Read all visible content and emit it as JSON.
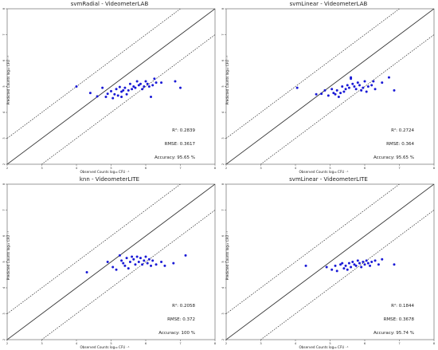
{
  "chart_data": [
    {
      "type": "scatter",
      "title": "svmRadial - VideometerLAB",
      "xlabel": "Observed Counts log₁₀ CFU ⁻¹",
      "ylabel": "Predicted Counts log₁₀ CFU ⁻¹",
      "xlim": [
        2,
        8
      ],
      "ylim": [
        2,
        8
      ],
      "xticks": [
        "2",
        "3",
        "4",
        "5",
        "6",
        "7",
        "8"
      ],
      "yticks": [
        "2",
        "3",
        "4",
        "5",
        "6",
        "7",
        "8"
      ],
      "r2": "R²: 0.2839",
      "rmse": "RMSE: 0.3617",
      "accuracy": "Accuracy: 95.65 %",
      "points": [
        [
          4.0,
          5.0
        ],
        [
          4.4,
          4.75
        ],
        [
          4.6,
          4.62
        ],
        [
          4.75,
          4.95
        ],
        [
          4.85,
          4.6
        ],
        [
          4.9,
          4.72
        ],
        [
          5.0,
          4.82
        ],
        [
          5.05,
          4.55
        ],
        [
          5.1,
          4.7
        ],
        [
          5.15,
          4.9
        ],
        [
          5.2,
          4.65
        ],
        [
          5.25,
          4.98
        ],
        [
          5.3,
          4.8
        ],
        [
          5.3,
          4.6
        ],
        [
          5.35,
          4.85
        ],
        [
          5.4,
          4.95
        ],
        [
          5.45,
          4.7
        ],
        [
          5.5,
          4.85
        ],
        [
          5.55,
          5.1
        ],
        [
          5.6,
          4.9
        ],
        [
          5.65,
          5.0
        ],
        [
          5.7,
          4.95
        ],
        [
          5.75,
          5.2
        ],
        [
          5.8,
          5.05
        ],
        [
          5.85,
          5.1
        ],
        [
          5.9,
          4.9
        ],
        [
          5.95,
          5.0
        ],
        [
          6.0,
          5.2
        ],
        [
          6.05,
          5.1
        ],
        [
          6.1,
          5.0
        ],
        [
          6.15,
          4.6
        ],
        [
          6.2,
          5.05
        ],
        [
          6.25,
          5.3
        ],
        [
          6.3,
          5.15
        ],
        [
          6.45,
          5.15
        ],
        [
          6.85,
          5.2
        ],
        [
          7.0,
          4.95
        ]
      ]
    },
    {
      "type": "scatter",
      "title": "svmLinear - VideometerLAB",
      "xlabel": "Observed Counts log₁₀ CFU ⁻¹",
      "ylabel": "Predicted Counts log₁₀ CFU ⁻¹",
      "xlim": [
        2,
        8
      ],
      "ylim": [
        2,
        8
      ],
      "xticks": [
        "2",
        "3",
        "4",
        "5",
        "6",
        "7",
        "8"
      ],
      "yticks": [
        "2",
        "3",
        "4",
        "5",
        "6",
        "7",
        "8"
      ],
      "r2": "R²: 0.2724",
      "rmse": "RMSE: 0.364",
      "accuracy": "Accuracy: 95.65 %",
      "points": [
        [
          4.05,
          4.95
        ],
        [
          4.6,
          4.7
        ],
        [
          4.75,
          4.72
        ],
        [
          4.85,
          4.85
        ],
        [
          4.95,
          4.65
        ],
        [
          5.05,
          4.9
        ],
        [
          5.1,
          4.75
        ],
        [
          5.15,
          4.7
        ],
        [
          5.2,
          4.85
        ],
        [
          5.25,
          4.6
        ],
        [
          5.3,
          4.75
        ],
        [
          5.35,
          5.0
        ],
        [
          5.4,
          4.8
        ],
        [
          5.45,
          4.9
        ],
        [
          5.5,
          5.05
        ],
        [
          5.55,
          4.95
        ],
        [
          5.6,
          5.3
        ],
        [
          5.6,
          5.35
        ],
        [
          5.65,
          5.1
        ],
        [
          5.7,
          5.0
        ],
        [
          5.75,
          4.9
        ],
        [
          5.8,
          5.15
        ],
        [
          5.85,
          5.05
        ],
        [
          5.9,
          4.85
        ],
        [
          5.95,
          4.95
        ],
        [
          6.0,
          5.2
        ],
        [
          6.05,
          4.8
        ],
        [
          6.1,
          5.0
        ],
        [
          6.2,
          5.05
        ],
        [
          6.25,
          5.2
        ],
        [
          6.3,
          4.9
        ],
        [
          6.5,
          5.15
        ],
        [
          6.7,
          5.35
        ],
        [
          6.85,
          4.85
        ]
      ]
    },
    {
      "type": "scatter",
      "title": "knn - VideometerLITE",
      "xlabel": "Observed Counts log₁₀ CFU ⁻¹",
      "ylabel": "Predicted Counts log₁₀ CFU ⁻¹",
      "xlim": [
        2,
        8
      ],
      "ylim": [
        2,
        8
      ],
      "xticks": [
        "2",
        "3",
        "4",
        "5",
        "6",
        "7",
        "8"
      ],
      "yticks": [
        "2",
        "3",
        "4",
        "5",
        "6",
        "7",
        "8"
      ],
      "r2": "R²: 0.2058",
      "rmse": "RMSE: 0.372",
      "accuracy": "Accuracy: 100 %",
      "points": [
        [
          4.3,
          4.6
        ],
        [
          4.9,
          5.0
        ],
        [
          5.05,
          4.8
        ],
        [
          5.15,
          4.7
        ],
        [
          5.25,
          5.25
        ],
        [
          5.3,
          5.05
        ],
        [
          5.35,
          4.95
        ],
        [
          5.4,
          4.85
        ],
        [
          5.45,
          5.15
        ],
        [
          5.5,
          4.75
        ],
        [
          5.55,
          5.0
        ],
        [
          5.6,
          5.2
        ],
        [
          5.65,
          5.1
        ],
        [
          5.7,
          4.9
        ],
        [
          5.75,
          5.2
        ],
        [
          5.8,
          5.0
        ],
        [
          5.85,
          5.15
        ],
        [
          5.9,
          4.9
        ],
        [
          5.95,
          5.05
        ],
        [
          6.0,
          5.2
        ],
        [
          6.05,
          4.95
        ],
        [
          6.1,
          5.1
        ],
        [
          6.15,
          4.85
        ],
        [
          6.2,
          5.05
        ],
        [
          6.3,
          4.9
        ],
        [
          6.45,
          5.0
        ],
        [
          6.55,
          4.85
        ],
        [
          6.8,
          4.95
        ],
        [
          7.15,
          5.25
        ]
      ]
    },
    {
      "type": "scatter",
      "title": "svmLinear - VideometerLITE",
      "xlabel": "Observed Counts log₁₀ CFU ⁻¹",
      "ylabel": "Predicted Counts log₁₀ CFU ⁻¹",
      "xlim": [
        2,
        8
      ],
      "ylim": [
        2,
        8
      ],
      "xticks": [
        "2",
        "3",
        "4",
        "5",
        "6",
        "7",
        "8"
      ],
      "yticks": [
        "2",
        "3",
        "4",
        "5",
        "6",
        "7",
        "8"
      ],
      "r2": "R²: 0.1844",
      "rmse": "RMSE: 0.3678",
      "accuracy": "Accuracy: 95.74 %",
      "points": [
        [
          4.3,
          4.85
        ],
        [
          4.9,
          4.8
        ],
        [
          5.05,
          4.7
        ],
        [
          5.15,
          4.85
        ],
        [
          5.2,
          4.65
        ],
        [
          5.3,
          4.9
        ],
        [
          5.35,
          4.95
        ],
        [
          5.4,
          4.75
        ],
        [
          5.45,
          4.85
        ],
        [
          5.5,
          4.7
        ],
        [
          5.55,
          4.95
        ],
        [
          5.6,
          4.8
        ],
        [
          5.65,
          5.0
        ],
        [
          5.7,
          4.9
        ],
        [
          5.75,
          4.85
        ],
        [
          5.8,
          5.05
        ],
        [
          5.85,
          4.95
        ],
        [
          5.9,
          4.8
        ],
        [
          5.95,
          5.0
        ],
        [
          6.0,
          4.9
        ],
        [
          6.05,
          5.05
        ],
        [
          6.1,
          4.95
        ],
        [
          6.15,
          4.85
        ],
        [
          6.2,
          5.0
        ],
        [
          6.3,
          5.05
        ],
        [
          6.4,
          4.9
        ],
        [
          6.5,
          5.1
        ],
        [
          6.85,
          4.9
        ]
      ]
    }
  ]
}
